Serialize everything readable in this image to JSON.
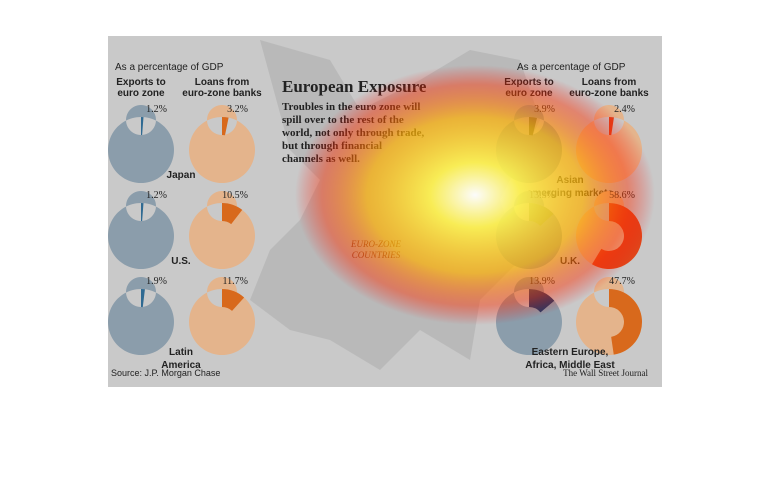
{
  "header": {
    "title": "European Exposure",
    "body": [
      "Troubles in the euro zone will",
      "spill over to the rest of the",
      "world, not only through trade,",
      "but through financial",
      "channels as well."
    ],
    "map_label": [
      "EURO-ZONE",
      "COUNTRIES"
    ]
  },
  "panels": [
    {
      "subtitle": "As a percentage of GDP",
      "columns": [
        [
          "Exports to",
          "euro zone"
        ],
        [
          "Loans from",
          "euro-zone banks"
        ]
      ]
    },
    {
      "subtitle": "As a percentage of GDP",
      "columns": [
        [
          "Exports to",
          "euro zone"
        ],
        [
          "Loans from",
          "euro-zone banks"
        ]
      ]
    }
  ],
  "chart_data": [
    {
      "type": "donut",
      "name": [
        "Japan"
      ],
      "values": [
        1.2,
        3.2
      ],
      "value_labels": [
        "1.2%",
        "3.2%"
      ],
      "colors": [
        "#2f6a92",
        "#d8691c"
      ]
    },
    {
      "type": "donut",
      "name": [
        "U.S."
      ],
      "values": [
        1.2,
        10.5
      ],
      "value_labels": [
        "1.2%",
        "10.5%"
      ],
      "colors": [
        "#2f6a92",
        "#d8691c"
      ]
    },
    {
      "type": "donut",
      "name": [
        "Latin",
        "America"
      ],
      "values": [
        1.9,
        11.7
      ],
      "value_labels": [
        "1.9%",
        "11.7%"
      ],
      "colors": [
        "#2f6a92",
        "#d8691c"
      ]
    },
    {
      "type": "donut",
      "name": [
        "Asian",
        "emerging markets"
      ],
      "values": [
        3.9,
        2.4
      ],
      "value_labels": [
        "3.9%",
        "2.4%"
      ],
      "colors": [
        "#5f6a55",
        "#e0401a"
      ]
    },
    {
      "type": "donut",
      "name": [
        "U.K."
      ],
      "values": [
        13.3,
        58.6
      ],
      "value_labels": [
        "13.3%",
        "58.6%"
      ],
      "colors": [
        "#7f9a6a",
        "#e0451a"
      ]
    },
    {
      "type": "donut",
      "name": [
        "Eastern Europe,",
        "Africa, Middle East"
      ],
      "values": [
        13.9,
        47.7
      ],
      "value_labels": [
        "13.9%",
        "47.7%"
      ],
      "colors": [
        "#1f3a66",
        "#d8691c"
      ]
    }
  ],
  "footer": {
    "source": "Source: J.P. Morgan Chase",
    "credit": "The Wall Street Journal"
  }
}
